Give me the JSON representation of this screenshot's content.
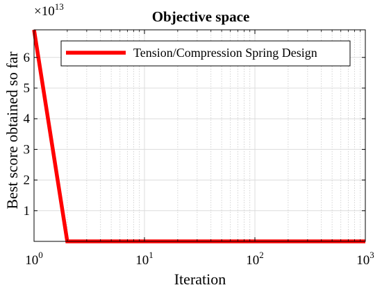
{
  "chart_data": {
    "type": "line",
    "title": "Objective space",
    "xlabel": "Iteration",
    "ylabel": "Best score obtained so far",
    "xscale": "log",
    "xlim": [
      1,
      1000
    ],
    "ylim": [
      0,
      6.9
    ],
    "y_multiplier": {
      "base": "×10",
      "exponent": "13"
    },
    "x_ticks": [
      {
        "value": 1,
        "base": "10",
        "exp": "0"
      },
      {
        "value": 10,
        "base": "10",
        "exp": "1"
      },
      {
        "value": 100,
        "base": "10",
        "exp": "2"
      },
      {
        "value": 1000,
        "base": "10",
        "exp": "3"
      }
    ],
    "y_ticks": [
      {
        "value": 1,
        "label": "1"
      },
      {
        "value": 2,
        "label": "2"
      },
      {
        "value": 3,
        "label": "3"
      },
      {
        "value": 4,
        "label": "4"
      },
      {
        "value": 5,
        "label": "5"
      },
      {
        "value": 6,
        "label": "6"
      }
    ],
    "grid": true,
    "legend_position": "top-right",
    "series": [
      {
        "name": "Tension/Compression Spring Design",
        "color": "#ff0000",
        "x": [
          1,
          2,
          1000
        ],
        "y": [
          6.9,
          0,
          0
        ]
      }
    ]
  }
}
